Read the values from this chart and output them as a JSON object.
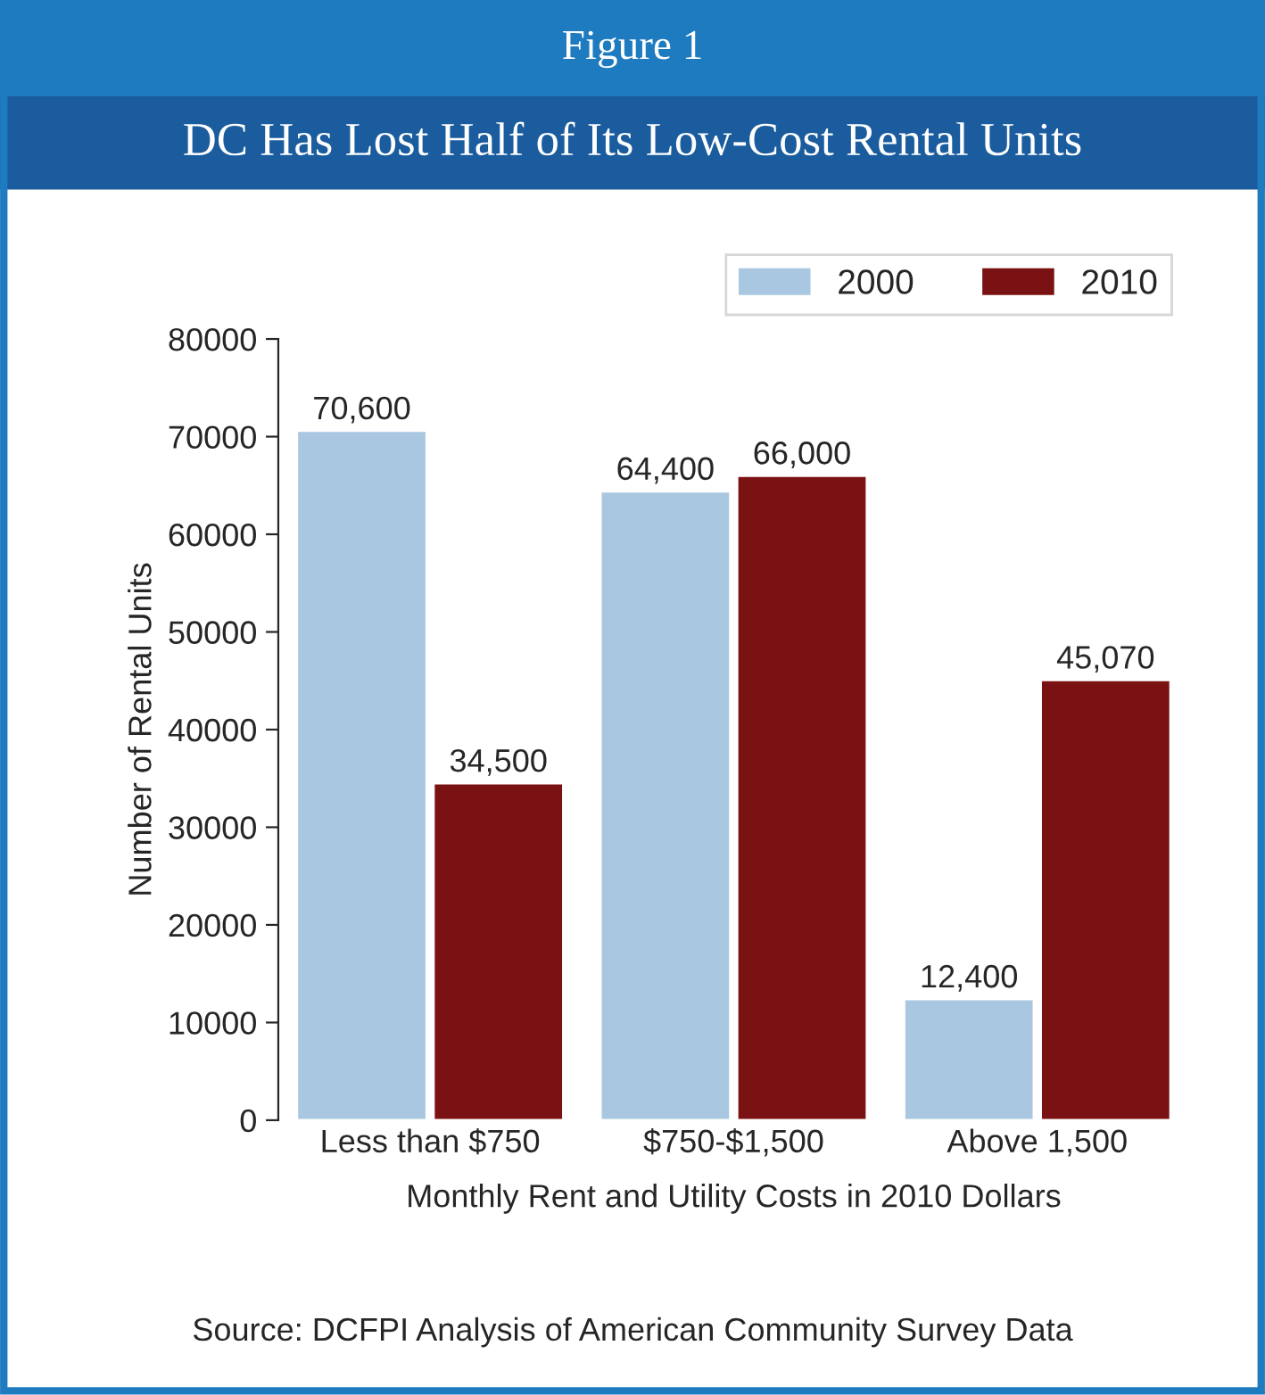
{
  "chart_data": {
    "type": "bar",
    "title": "Figure 1",
    "subtitle": "DC Has Lost Half of Its Low-Cost Rental Units",
    "xlabel": "Monthly Rent and Utility Costs in 2010 Dollars",
    "ylabel": "Number of Rental Units",
    "categories": [
      "Less than $750",
      "$750-$1,500",
      "Above 1,500"
    ],
    "series": [
      {
        "name": "2000",
        "color": "#a9c7e0",
        "values": [
          70600,
          64400,
          12400
        ],
        "value_labels": [
          "70,600",
          "64,400",
          "12,400"
        ]
      },
      {
        "name": "2010",
        "color": "#7a1214",
        "values": [
          34500,
          66000,
          45070
        ],
        "value_labels": [
          "34,500",
          "66,000",
          "45,070"
        ]
      }
    ],
    "ylim": [
      0,
      80000
    ],
    "yticks": [
      0,
      10000,
      20000,
      30000,
      40000,
      50000,
      60000,
      70000,
      80000
    ],
    "grid": false,
    "legend": "top right",
    "annotations": [
      "Source: DCFPI Analysis of American Community Survey Data"
    ]
  }
}
